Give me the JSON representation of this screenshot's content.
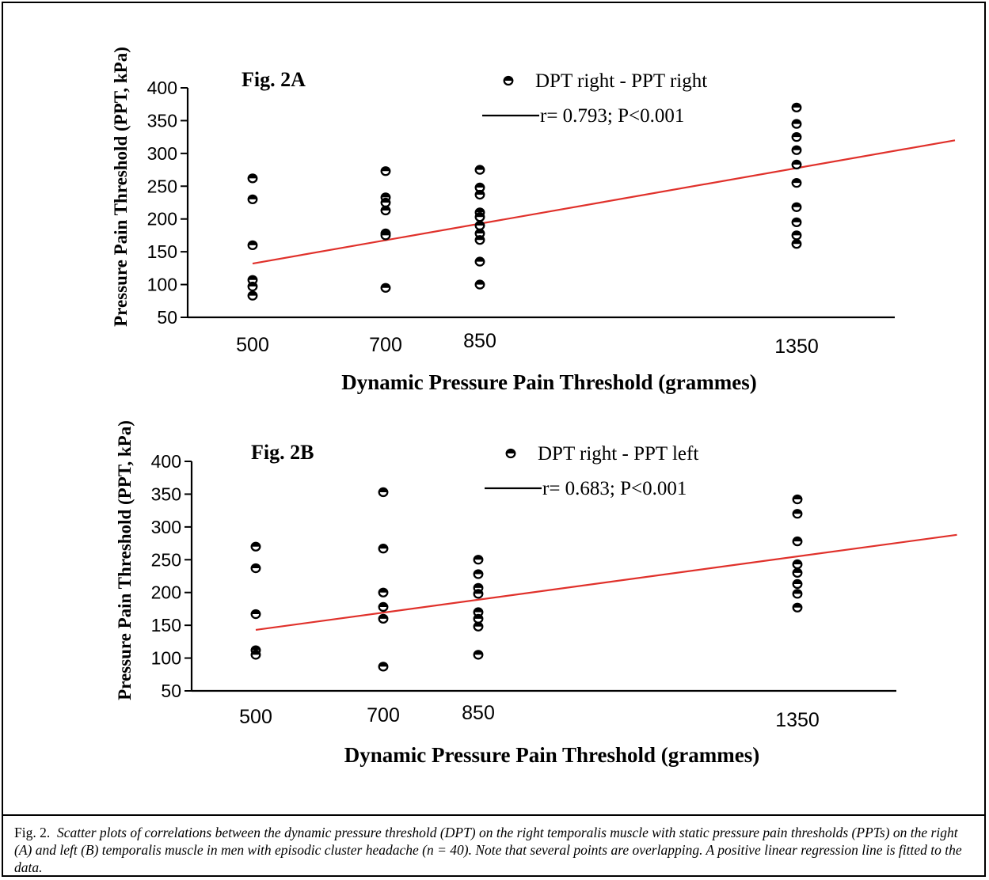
{
  "chart_data": [
    {
      "type": "scatter",
      "title": "Fig. 2A",
      "xlabel": "Dynamic Pressure Pain Threshold (grammes)",
      "ylabel": "Pressure Pain Threshold (PPT, kPa)",
      "x_ticks": [
        "500",
        "700",
        "850",
        "1350"
      ],
      "y_ticks": [
        "50",
        "100",
        "150",
        "200",
        "250",
        "300",
        "350",
        "400"
      ],
      "ylim": [
        50,
        400
      ],
      "legend": {
        "points": "DPT right - PPT right",
        "line": "r= 0.793; P<0.001"
      },
      "series": [
        {
          "x": 500,
          "y": [
            262,
            230,
            160,
            107,
            97,
            83
          ]
        },
        {
          "x": 700,
          "y": [
            273,
            233,
            225,
            213,
            178,
            175,
            95
          ]
        },
        {
          "x": 850,
          "y": [
            275,
            248,
            237,
            210,
            203,
            190,
            178,
            168,
            135,
            100
          ]
        },
        {
          "x": 1350,
          "y": [
            370,
            345,
            325,
            305,
            283,
            255,
            218,
            195,
            175,
            162
          ]
        }
      ],
      "regression": {
        "x": [
          500,
          1600
        ],
        "y": [
          132,
          320
        ]
      }
    },
    {
      "type": "scatter",
      "title": "Fig. 2B",
      "xlabel": "Dynamic Pressure Pain Threshold (grammes)",
      "ylabel": "Pressure Pain Threshold (PPT, kPa)",
      "x_ticks": [
        "500",
        "700",
        "850",
        "1350"
      ],
      "y_ticks": [
        "50",
        "100",
        "150",
        "200",
        "250",
        "300",
        "350",
        "400"
      ],
      "ylim": [
        50,
        400
      ],
      "legend": {
        "points": "DPT right - PPT left",
        "line": "r= 0.683; P<0.001"
      },
      "series": [
        {
          "x": 500,
          "y": [
            270,
            237,
            167,
            112,
            105
          ]
        },
        {
          "x": 700,
          "y": [
            353,
            267,
            200,
            178,
            160,
            87
          ]
        },
        {
          "x": 850,
          "y": [
            250,
            228,
            207,
            198,
            170,
            160,
            148,
            105
          ]
        },
        {
          "x": 1350,
          "y": [
            342,
            320,
            278,
            243,
            230,
            213,
            198,
            177
          ]
        }
      ],
      "regression": {
        "x": [
          500,
          1600
        ],
        "y": [
          143,
          288
        ]
      }
    }
  ],
  "caption": {
    "label": "Fig. 2.",
    "text": "Scatter plots of correlations between the dynamic pressure threshold (DPT) on the right temporalis muscle with static pressure pain thresholds (PPTs) on the right (A) and left (B) temporalis muscle in men with episodic cluster headache (n = 40). Note that several points are overlapping. A positive linear regression line is fitted to the data."
  },
  "colors": {
    "regression": "#e0312b",
    "axis": "#000000"
  }
}
